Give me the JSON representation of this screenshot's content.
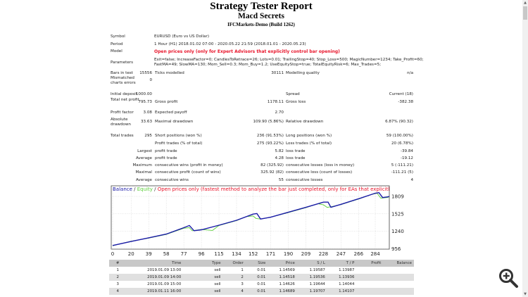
{
  "header": {
    "title": "Strategy Tester Report",
    "expert": "Macd Secrets",
    "server": "IFCMarkets-Demo (Build 1262)"
  },
  "info": {
    "symbol_label": "Symbol",
    "symbol": "EURUSD (Euro vs US Dollar)",
    "period_label": "Period",
    "period": "1 Hour (H1) 2018.01.02 07:00 - 2020.05.22 21:59 (2018.01.01 - 2020.05.23)",
    "model_label": "Model",
    "model": "Open prices only (only for Expert Advisors that explicitly control bar opening)",
    "parameters_label": "Parameters",
    "parameters_line1": "Exit=false; IncreaseFactor=0; CandlesToRetrace=26; Lots=0.01; TrailingStop=40; Stop_Loss=500; MagicNumber=1234; Take_Profit=60;",
    "parameters_line2": "FastMA=49; SlowMA=130; Mom_Sell=0.3; Mom_Buy=1.2; UseEquityStop=true; TotalEquityRisk=6; Max_Trades=5;"
  },
  "stats": [
    {
      "l1": "Bars in test",
      "v1": "15556",
      "l2": "Ticks modelled",
      "v2": "30111",
      "l3": "Modelling quality",
      "v3": "n/a"
    },
    {
      "l1": "Mismatched charts errors",
      "v1": "0",
      "l2": "",
      "v2": "",
      "l3": "",
      "v3": ""
    },
    {
      "l1": "Initial deposit",
      "v1": "1000.00",
      "l2": "",
      "v2": "",
      "l3": "Spread",
      "v3": "Current (18)"
    },
    {
      "l1": "Total net profit",
      "v1": "795.73",
      "l2": "Gross profit",
      "v2": "1178.11",
      "l3": "Gross loss",
      "v3": "-382.38"
    },
    {
      "l1": "Profit factor",
      "v1": "3.08",
      "l2": "Expected payoff",
      "v2": "2.70",
      "l3": "",
      "v3": ""
    },
    {
      "l1": "Absolute drawdown",
      "v1": "33.63",
      "l2": "Maximal drawdown",
      "v2": "109.90 (5.86%)",
      "l3": "Relative drawdown",
      "v3": "6.87% (90.32)"
    },
    {
      "l1": "Total trades",
      "v1": "295",
      "l2": "Short positions (won %)",
      "v2": "236 (91.53%)",
      "l3": "Long positions (won %)",
      "v3": "59 (100.00%)"
    },
    {
      "l1": "",
      "v1": "",
      "l2": "Profit trades (% of total)",
      "v2": "275 (93.22%)",
      "l3": "Loss trades (% of total)",
      "v3": "20 (6.78%)"
    },
    {
      "l1": "",
      "v1": "Largest",
      "l2": "profit trade",
      "v2": "5.82",
      "l3": "loss trade",
      "v3": "-39.84"
    },
    {
      "l1": "",
      "v1": "Average",
      "l2": "profit trade",
      "v2": "4.28",
      "l3": "loss trade",
      "v3": "-19.12"
    },
    {
      "l1": "",
      "v1": "Maximum",
      "l2": "consecutive wins (profit in money)",
      "v2": "82 (325.92)",
      "l3": "consecutive losses (loss in money)",
      "v3": "5 (-111.21)"
    },
    {
      "l1": "",
      "v1": "Maximal",
      "l2": "consecutive profit (count of wins)",
      "v2": "325.92 (82)",
      "l3": "consecutive loss (count of losses)",
      "v3": "-111.21 (5)"
    },
    {
      "l1": "",
      "v1": "Average",
      "l2": "consecutive wins",
      "v2": "55",
      "l3": "consecutive losses",
      "v3": "4"
    }
  ],
  "chart_data": {
    "type": "line",
    "legend": {
      "balance": "Balance",
      "sep1": " / ",
      "equity": "Equity",
      "sep2": " / ",
      "note": "Open prices only (fastest method to analyze the bar just completed, only for EAs that explicitly control b"
    },
    "colors": {
      "balance": "#1a1aa8",
      "equity": "#5ccf3a",
      "note": "#e8142a"
    },
    "xticks": [
      0,
      20,
      39,
      58,
      77,
      96,
      115,
      134,
      152,
      171,
      190,
      209,
      228,
      247,
      266,
      284
    ],
    "yticks": [
      956,
      1240,
      1525,
      1809
    ],
    "xlim": [
      0,
      301
    ],
    "ylim": [
      956,
      1900
    ],
    "grid": true,
    "series": [
      {
        "name": "Balance",
        "x": [
          0,
          20,
          39,
          58,
          77,
          83,
          88,
          96,
          115,
          134,
          152,
          156,
          160,
          171,
          190,
          209,
          228,
          233,
          236,
          247,
          266,
          284,
          288,
          292,
          297,
          301
        ],
        "y": [
          1010,
          1075,
          1135,
          1195,
          1300,
          1335,
          1250,
          1265,
          1340,
          1420,
          1520,
          1530,
          1440,
          1470,
          1550,
          1630,
          1715,
          1715,
          1630,
          1680,
          1770,
          1860,
          1870,
          1790,
          1800,
          1812
        ]
      },
      {
        "name": "Equity",
        "x": [
          0,
          20,
          39,
          58,
          77,
          83,
          86,
          96,
          108,
          115,
          134,
          145,
          152,
          155,
          160,
          171,
          190,
          209,
          222,
          228,
          232,
          236,
          247,
          266,
          280,
          286,
          290,
          297,
          301
        ],
        "y": [
          1005,
          1080,
          1130,
          1190,
          1290,
          1300,
          1250,
          1270,
          1255,
          1335,
          1415,
          1480,
          1490,
          1450,
          1440,
          1470,
          1545,
          1625,
          1690,
          1670,
          1630,
          1640,
          1675,
          1765,
          1840,
          1860,
          1780,
          1790,
          1810
        ]
      }
    ]
  },
  "trades": {
    "headers": [
      "#",
      "Time",
      "Type",
      "Order",
      "Size",
      "Price",
      "S / L",
      "T / P",
      "Profit",
      "Balance"
    ],
    "rows": [
      [
        "1",
        "2019.01.09 13:00",
        "sell",
        "1",
        "0.01",
        "1.14569",
        "1.19587",
        "1.13987",
        "",
        ""
      ],
      [
        "2",
        "2019.01.09 14:00",
        "sell",
        "2",
        "0.01",
        "1.14518",
        "1.19536",
        "1.13936",
        "",
        ""
      ],
      [
        "3",
        "2019.01.09 15:00",
        "sell",
        "3",
        "0.01",
        "1.14626",
        "1.19644",
        "1.14044",
        "",
        ""
      ],
      [
        "4",
        "2019.01.11 16:00",
        "sell",
        "4",
        "0.01",
        "1.14689",
        "1.19707",
        "1.14107",
        "",
        ""
      ]
    ]
  },
  "icons": {
    "zoom": "zoom-in-icon",
    "scroll_up": "▲",
    "scroll_down": "▼"
  }
}
